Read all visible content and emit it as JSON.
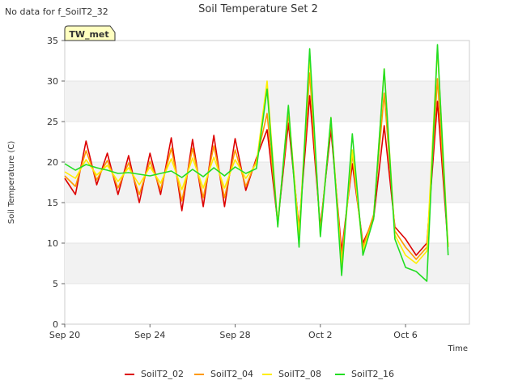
{
  "header": {
    "no_data_note": "No data for f_SoilT2_32",
    "title": "Soil Temperature Set 2",
    "badge": "TW_met"
  },
  "chart_data": {
    "type": "line",
    "title": "Soil Temperature Set 2",
    "xlabel": "Time",
    "ylabel": "Soil Temperature (C)",
    "xlim": [
      "2023-09-20",
      "2023-10-09"
    ],
    "ylim": [
      0,
      35
    ],
    "x_ticks": [
      {
        "label": "Sep 20",
        "date": "2023-09-20"
      },
      {
        "label": "Sep 24",
        "date": "2023-09-24"
      },
      {
        "label": "Sep 28",
        "date": "2023-09-28"
      },
      {
        "label": "Oct 2",
        "date": "2023-10-02"
      },
      {
        "label": "Oct 6",
        "date": "2023-10-06"
      }
    ],
    "y_ticks": [
      "0",
      "5",
      "10",
      "15",
      "20",
      "25",
      "30",
      "35"
    ],
    "grid": "horizontal bands",
    "legend_placement": "bottom",
    "series": [
      {
        "name": "SoilT2_02",
        "color": "#dd0000",
        "x": [
          "2023-09-20",
          "2023-09-20T12",
          "2023-09-21",
          "2023-09-21T12",
          "2023-09-22",
          "2023-09-22T12",
          "2023-09-23",
          "2023-09-23T12",
          "2023-09-24",
          "2023-09-24T12",
          "2023-09-25",
          "2023-09-25T12",
          "2023-09-26",
          "2023-09-26T12",
          "2023-09-27",
          "2023-09-27T12",
          "2023-09-28",
          "2023-09-28T12",
          "2023-09-29",
          "2023-09-29T12",
          "2023-09-30",
          "2023-09-30T12",
          "2023-10-01",
          "2023-10-01T12",
          "2023-10-02",
          "2023-10-02T12",
          "2023-10-03",
          "2023-10-03T12",
          "2023-10-04",
          "2023-10-04T12",
          "2023-10-05",
          "2023-10-05T12",
          "2023-10-06",
          "2023-10-06T12",
          "2023-10-07",
          "2023-10-07T12",
          "2023-10-08"
        ],
        "values": [
          18.0,
          16.0,
          22.6,
          17.2,
          21.1,
          16.0,
          20.8,
          15.0,
          21.1,
          16.0,
          23.0,
          14.0,
          22.8,
          14.5,
          23.3,
          14.5,
          22.9,
          16.5,
          20.5,
          24.0,
          12.5,
          24.8,
          12.0,
          28.2,
          12.0,
          24.0,
          9.0,
          19.8,
          10.0,
          13.0,
          24.5,
          12.0,
          10.5,
          8.5,
          10.0,
          27.5,
          9.5
        ]
      },
      {
        "name": "SoilT2_04",
        "color": "#ff9900",
        "x": [
          "2023-09-20",
          "2023-09-20T12",
          "2023-09-21",
          "2023-09-21T12",
          "2023-09-22",
          "2023-09-22T12",
          "2023-09-23",
          "2023-09-23T12",
          "2023-09-24",
          "2023-09-24T12",
          "2023-09-25",
          "2023-09-25T12",
          "2023-09-26",
          "2023-09-26T12",
          "2023-09-27",
          "2023-09-27T12",
          "2023-09-28",
          "2023-09-28T12",
          "2023-09-29",
          "2023-09-29T12",
          "2023-09-30",
          "2023-09-30T12",
          "2023-10-01",
          "2023-10-01T12",
          "2023-10-02",
          "2023-10-02T12",
          "2023-10-03",
          "2023-10-03T12",
          "2023-10-04",
          "2023-10-04T12",
          "2023-10-05",
          "2023-10-05T12",
          "2023-10-06",
          "2023-10-06T12",
          "2023-10-07",
          "2023-10-07T12",
          "2023-10-08"
        ],
        "values": [
          18.3,
          17.0,
          21.4,
          17.8,
          20.2,
          16.8,
          19.9,
          16.0,
          20.1,
          16.6,
          21.7,
          15.2,
          21.7,
          15.6,
          22.0,
          15.6,
          21.5,
          17.0,
          20.2,
          26.0,
          12.5,
          26.0,
          11.5,
          31.0,
          11.5,
          25.0,
          8.0,
          21.0,
          9.5,
          13.5,
          28.5,
          11.5,
          9.5,
          8.0,
          9.5,
          30.3,
          9.5
        ]
      },
      {
        "name": "SoilT2_08",
        "color": "#ffee00",
        "x": [
          "2023-09-20",
          "2023-09-20T12",
          "2023-09-21",
          "2023-09-21T12",
          "2023-09-22",
          "2023-09-22T12",
          "2023-09-23",
          "2023-09-23T12",
          "2023-09-24",
          "2023-09-24T12",
          "2023-09-25",
          "2023-09-25T12",
          "2023-09-26",
          "2023-09-26T12",
          "2023-09-27",
          "2023-09-27T12",
          "2023-09-28",
          "2023-09-28T12",
          "2023-09-29",
          "2023-09-29T12",
          "2023-09-30",
          "2023-09-30T12",
          "2023-10-01",
          "2023-10-01T12",
          "2023-10-02",
          "2023-10-02T12",
          "2023-10-03",
          "2023-10-03T12",
          "2023-10-04",
          "2023-10-04T12",
          "2023-10-05",
          "2023-10-05T12",
          "2023-10-06",
          "2023-10-06T12",
          "2023-10-07",
          "2023-10-07T12",
          "2023-10-08"
        ],
        "values": [
          18.8,
          18.0,
          20.3,
          18.4,
          19.6,
          17.6,
          19.3,
          17.2,
          19.4,
          17.4,
          20.4,
          16.6,
          20.5,
          16.8,
          20.6,
          16.8,
          20.3,
          18.0,
          19.8,
          30.0,
          12.2,
          26.8,
          11.0,
          33.0,
          11.0,
          25.5,
          7.0,
          21.5,
          9.0,
          13.0,
          31.5,
          11.0,
          8.5,
          7.5,
          9.0,
          34.0,
          9.5
        ]
      },
      {
        "name": "SoilT2_16",
        "color": "#22dd22",
        "x": [
          "2023-09-20",
          "2023-09-20T12",
          "2023-09-21",
          "2023-09-21T12",
          "2023-09-22",
          "2023-09-22T12",
          "2023-09-23",
          "2023-09-23T12",
          "2023-09-24",
          "2023-09-24T12",
          "2023-09-25",
          "2023-09-25T12",
          "2023-09-26",
          "2023-09-26T12",
          "2023-09-27",
          "2023-09-27T12",
          "2023-09-28",
          "2023-09-28T12",
          "2023-09-29",
          "2023-09-29T12",
          "2023-09-30",
          "2023-09-30T12",
          "2023-10-01",
          "2023-10-01T12",
          "2023-10-02",
          "2023-10-02T12",
          "2023-10-03",
          "2023-10-03T12",
          "2023-10-04",
          "2023-10-04T12",
          "2023-10-05",
          "2023-10-05T12",
          "2023-10-06",
          "2023-10-06T12",
          "2023-10-07",
          "2023-10-07T12",
          "2023-10-08"
        ],
        "values": [
          19.8,
          19.0,
          19.7,
          19.3,
          19.0,
          18.6,
          18.7,
          18.5,
          18.3,
          18.6,
          18.9,
          18.1,
          19.1,
          18.2,
          19.3,
          18.3,
          19.4,
          18.6,
          19.2,
          29.0,
          12.0,
          27.0,
          9.5,
          34.0,
          10.8,
          25.5,
          6.0,
          23.5,
          8.5,
          13.0,
          31.5,
          10.5,
          7.0,
          6.5,
          5.3,
          34.5,
          8.5
        ]
      }
    ]
  }
}
